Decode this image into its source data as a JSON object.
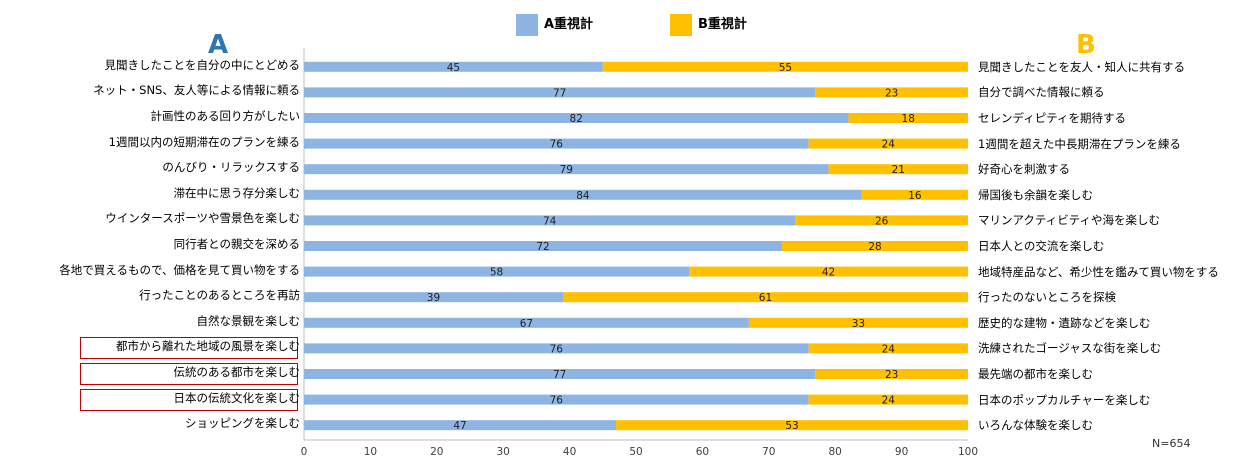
{
  "chart_data": {
    "type": "bar",
    "orientation": "horizontal-stacked",
    "legend": [
      {
        "name": "A重視計",
        "color": "#8DB4E2"
      },
      {
        "name": "B重視計",
        "color": "#FFC000"
      }
    ],
    "left_header": "A",
    "right_header": "B",
    "left_header_color": "#2E75B6",
    "right_header_color": "#FFC000",
    "xlim": [
      0,
      100
    ],
    "xticks": [
      "0",
      "10",
      "20",
      "30",
      "40",
      "50",
      "60",
      "70",
      "80",
      "90",
      "100"
    ],
    "note": "N=654",
    "rows": [
      {
        "a_label": "見聞きしたことを自分の中にとどめる",
        "b_label": "見聞きしたことを友人・知人に共有する",
        "a": 45,
        "b": 55,
        "boxed": false
      },
      {
        "a_label": "ネット・SNS、友人等による情報に頼る",
        "b_label": "自分で調べた情報に頼る",
        "a": 77,
        "b": 23,
        "boxed": false
      },
      {
        "a_label": "計画性のある回り方がしたい",
        "b_label": "セレンディピティを期待する",
        "a": 82,
        "b": 18,
        "boxed": false
      },
      {
        "a_label": "1週間以内の短期滞在のプランを練る",
        "b_label": "1週間を超えた中長期滞在プランを練る",
        "a": 76,
        "b": 24,
        "boxed": false
      },
      {
        "a_label": "のんびり・リラックスする",
        "b_label": "好奇心を刺激する",
        "a": 79,
        "b": 21,
        "boxed": false
      },
      {
        "a_label": "滞在中に思う存分楽しむ",
        "b_label": "帰国後も余韻を楽しむ",
        "a": 84,
        "b": 16,
        "boxed": false
      },
      {
        "a_label": "ウインタースポーツや雪景色を楽しむ",
        "b_label": "マリンアクティビティや海を楽しむ",
        "a": 74,
        "b": 26,
        "boxed": false
      },
      {
        "a_label": "同行者との親交を深める",
        "b_label": "日本人との交流を楽しむ",
        "a": 72,
        "b": 28,
        "boxed": false
      },
      {
        "a_label": "各地で買えるもので、価格を見て買い物をする",
        "b_label": "地域特産品など、希少性を鑑みて買い物をする",
        "a": 58,
        "b": 42,
        "boxed": false
      },
      {
        "a_label": "行ったことのあるところを再訪",
        "b_label": "行ったのないところを探検",
        "a": 39,
        "b": 61,
        "boxed": false
      },
      {
        "a_label": "自然な景観を楽しむ",
        "b_label": "歴史的な建物・遺跡などを楽しむ",
        "a": 67,
        "b": 33,
        "boxed": false
      },
      {
        "a_label": "都市から離れた地域の風景を楽しむ",
        "b_label": "洗練されたゴージャスな街を楽しむ",
        "a": 76,
        "b": 24,
        "boxed": true
      },
      {
        "a_label": "伝統のある都市を楽しむ",
        "b_label": "最先端の都市を楽しむ",
        "a": 77,
        "b": 23,
        "boxed": true
      },
      {
        "a_label": "日本の伝統文化を楽しむ",
        "b_label": "日本のポップカルチャーを楽しむ",
        "a": 76,
        "b": 24,
        "boxed": true
      },
      {
        "a_label": "ショッピングを楽しむ",
        "b_label": "いろんな体験を楽しむ",
        "a": 47,
        "b": 53,
        "boxed": false
      }
    ]
  }
}
